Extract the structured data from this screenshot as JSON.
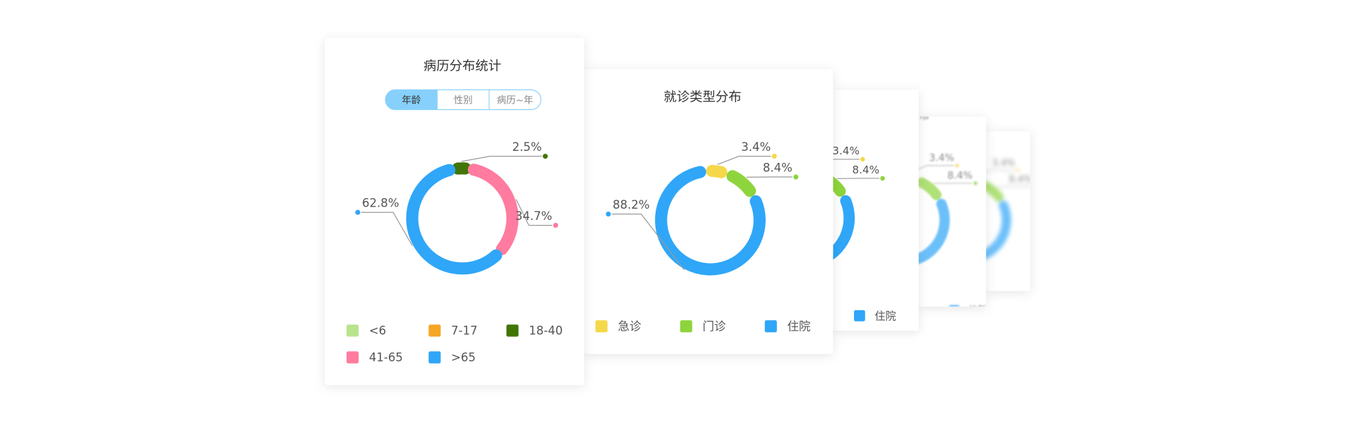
{
  "chart_data": [
    {
      "type": "donut",
      "title": "病历分布统计",
      "tabs": [
        "年龄",
        "性别",
        "病历~年"
      ],
      "categories": [
        "<6",
        "7-17",
        "18-40",
        "41-65",
        ">65"
      ],
      "values": [
        0,
        0,
        2.5,
        34.7,
        62.8
      ],
      "value_labels": [
        null,
        null,
        "2.5%",
        "34.7%",
        "62.8%"
      ],
      "colors": [
        "#b8e48c",
        "#f5a623",
        "#417505",
        "#ff7b9f",
        "#2fa6f8"
      ]
    },
    {
      "type": "donut",
      "title": "就诊类型分布",
      "categories": [
        "急诊",
        "门诊",
        "住院"
      ],
      "values": [
        3.4,
        8.4,
        88.2
      ],
      "value_labels": [
        "3.4%",
        "8.4%",
        "88.2%"
      ],
      "colors": [
        "#f5d84a",
        "#8ed43c",
        "#2fa6f8"
      ]
    }
  ]
}
